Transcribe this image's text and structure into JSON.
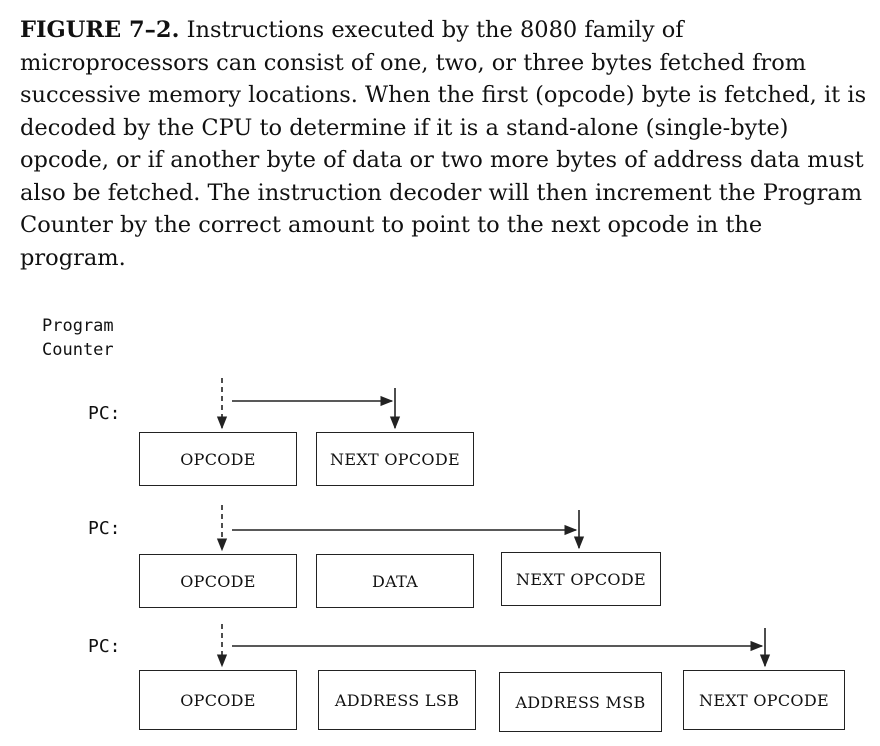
{
  "caption": {
    "figure_label": "FIGURE 7–2.",
    "text": "Instructions executed by the 8080 family of microprocessors can consist of one, two, or three bytes fetched from successive memory locations. When the first (opcode) byte is fetched, it is decoded by the CPU to determine if it is a stand-alone (single-byte) opcode, or if another byte of data or two more bytes of address data must also be fetched. The instruction decoder will then increment the Program Counter by the correct amount to point to the next opcode in the program."
  },
  "diagram": {
    "header_line1": "Program",
    "header_line2": "Counter",
    "rows": [
      {
        "pc_label": "PC:",
        "boxes": [
          "OPCODE",
          "NEXT OPCODE"
        ]
      },
      {
        "pc_label": "PC:",
        "boxes": [
          "OPCODE",
          "DATA",
          "NEXT OPCODE"
        ]
      },
      {
        "pc_label": "PC:",
        "boxes": [
          "OPCODE",
          "ADDRESS LSB",
          "ADDRESS MSB",
          "NEXT OPCODE"
        ]
      }
    ]
  }
}
